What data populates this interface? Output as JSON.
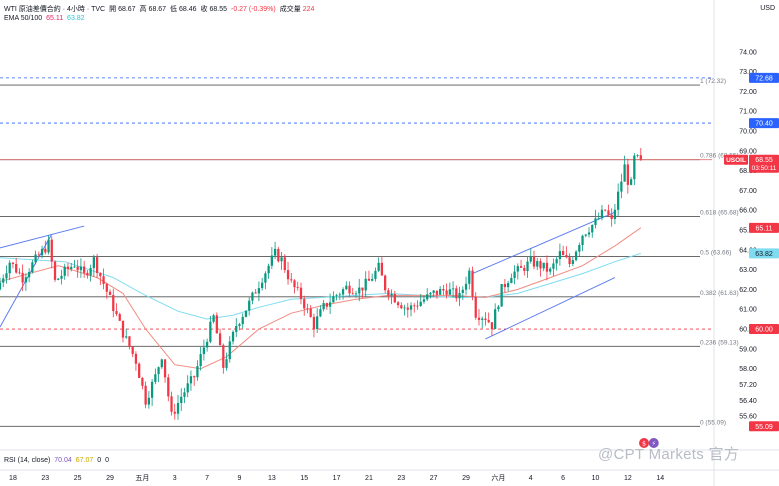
{
  "header": {
    "title": "WTI 原油差價合約 · 4小時 · TVC",
    "ohlc": [
      {
        "label": "開",
        "value": "68.67"
      },
      {
        "label": "高",
        "value": "68.67"
      },
      {
        "label": "低",
        "value": "68.46"
      },
      {
        "label": "收",
        "value": "68.55"
      }
    ],
    "change": "-0.27 (-0.39%)",
    "volume_label": "成交量",
    "volume_value": "224",
    "ema_label": "EMA 50/100",
    "ema50_value": "65.11",
    "ema100_value": "63.82",
    "currency": "USD"
  },
  "rsi": {
    "label": "RSI (14, close)",
    "value": "70.04",
    "ma": "67.07",
    "v1": "0",
    "v2": "0"
  },
  "watermark": "@CPT Markets 官方",
  "colors": {
    "up": "#089981",
    "down": "#f23645",
    "ema50": "#f28b82",
    "ema100": "#7fdcf0",
    "channel": "#5b7cf0",
    "fib": "#555555",
    "level": "#e57373",
    "blue_dash": "#2962ff"
  },
  "chart_data": {
    "type": "candlestick",
    "ylim": [
      54.6,
      75.2
    ],
    "xlim": [
      0,
      220
    ],
    "y_ticks": [
      74.0,
      73.0,
      72.0,
      71.0,
      70.0,
      69.0,
      68.0,
      67.0,
      66.0,
      65.0,
      64.0,
      63.0,
      62.0,
      61.0,
      60.0,
      59.0,
      58.0,
      57.2,
      56.4,
      55.6
    ],
    "x_labels": [
      {
        "label": "18",
        "x": 4
      },
      {
        "label": "23",
        "x": 14
      },
      {
        "label": "25",
        "x": 24
      },
      {
        "label": "29",
        "x": 34
      },
      {
        "label": "五月",
        "x": 44
      },
      {
        "label": "3",
        "x": 54
      },
      {
        "label": "7",
        "x": 64
      },
      {
        "label": "9",
        "x": 74
      },
      {
        "label": "13",
        "x": 84
      },
      {
        "label": "15",
        "x": 94
      },
      {
        "label": "17",
        "x": 104
      },
      {
        "label": "21",
        "x": 114
      },
      {
        "label": "23",
        "x": 124
      },
      {
        "label": "27",
        "x": 134
      },
      {
        "label": "29",
        "x": 144
      },
      {
        "label": "六月",
        "x": 154
      },
      {
        "label": "4",
        "x": 164
      },
      {
        "label": "6",
        "x": 174
      },
      {
        "label": "10",
        "x": 184
      },
      {
        "label": "12",
        "x": 194
      },
      {
        "label": "14",
        "x": 204
      }
    ],
    "anchors": [
      [
        0,
        62.0
      ],
      [
        4,
        63.4
      ],
      [
        8,
        62.6
      ],
      [
        12,
        63.5
      ],
      [
        16,
        64.3
      ],
      [
        18,
        62.4
      ],
      [
        21,
        62.9
      ],
      [
        24,
        63.3
      ],
      [
        27,
        62.7
      ],
      [
        30,
        63.5
      ],
      [
        33,
        62.3
      ],
      [
        36,
        61.1
      ],
      [
        39,
        59.8
      ],
      [
        43,
        58.4
      ],
      [
        46,
        56.4
      ],
      [
        49,
        57.6
      ],
      [
        51,
        58.7
      ],
      [
        54,
        55.6
      ],
      [
        57,
        56.6
      ],
      [
        61,
        57.6
      ],
      [
        64,
        59.1
      ],
      [
        67,
        60.6
      ],
      [
        70,
        58.1
      ],
      [
        74,
        60.2
      ],
      [
        78,
        61.3
      ],
      [
        82,
        62.6
      ],
      [
        86,
        63.8
      ],
      [
        88,
        63.5
      ],
      [
        91,
        62.3
      ],
      [
        94,
        61.6
      ],
      [
        98,
        60.2
      ],
      [
        101,
        61.1
      ],
      [
        104,
        61.6
      ],
      [
        108,
        62.1
      ],
      [
        112,
        62.0
      ],
      [
        115,
        62.4
      ],
      [
        118,
        63.1
      ],
      [
        120,
        62.1
      ],
      [
        124,
        61.4
      ],
      [
        127,
        61.0
      ],
      [
        131,
        61.4
      ],
      [
        135,
        61.8
      ],
      [
        139,
        62.0
      ],
      [
        143,
        61.6
      ],
      [
        146,
        62.9
      ],
      [
        148,
        60.8
      ],
      [
        151,
        60.6
      ],
      [
        153,
        60.2
      ],
      [
        156,
        62.0
      ],
      [
        159,
        62.8
      ],
      [
        162,
        63.0
      ],
      [
        165,
        63.4
      ],
      [
        168,
        63.2
      ],
      [
        171,
        62.9
      ],
      [
        174,
        63.8
      ],
      [
        177,
        63.3
      ],
      [
        181,
        64.8
      ],
      [
        185,
        65.4
      ],
      [
        188,
        66.0
      ],
      [
        190,
        65.4
      ],
      [
        192,
        66.8
      ],
      [
        194,
        68.2
      ],
      [
        195,
        67.5
      ],
      [
        196,
        67.3
      ],
      [
        197,
        68.6
      ],
      [
        198,
        68.55
      ]
    ],
    "ema50": [
      [
        0,
        62.4
      ],
      [
        18,
        63.2
      ],
      [
        30,
        62.6
      ],
      [
        38,
        61.8
      ],
      [
        45,
        60.0
      ],
      [
        54,
        58.2
      ],
      [
        62,
        58.0
      ],
      [
        70,
        58.6
      ],
      [
        80,
        60.0
      ],
      [
        90,
        60.8
      ],
      [
        100,
        61.2
      ],
      [
        110,
        61.5
      ],
      [
        120,
        61.7
      ],
      [
        130,
        61.7
      ],
      [
        140,
        61.7
      ],
      [
        150,
        61.6
      ],
      [
        160,
        62.0
      ],
      [
        170,
        62.6
      ],
      [
        180,
        63.2
      ],
      [
        190,
        64.2
      ],
      [
        198,
        65.11
      ]
    ],
    "ema100": [
      [
        0,
        63.6
      ],
      [
        20,
        63.4
      ],
      [
        35,
        62.6
      ],
      [
        45,
        61.7
      ],
      [
        55,
        60.9
      ],
      [
        64,
        60.5
      ],
      [
        72,
        60.7
      ],
      [
        80,
        61.1
      ],
      [
        90,
        61.5
      ],
      [
        100,
        61.6
      ],
      [
        110,
        61.7
      ],
      [
        120,
        61.8
      ],
      [
        130,
        61.7
      ],
      [
        140,
        61.6
      ],
      [
        150,
        61.6
      ],
      [
        160,
        61.8
      ],
      [
        170,
        62.3
      ],
      [
        180,
        62.8
      ],
      [
        190,
        63.4
      ],
      [
        198,
        63.82
      ]
    ],
    "fib_levels": [
      {
        "ratio": "1",
        "price": 72.32,
        "label": "1 (72.32)"
      },
      {
        "ratio": "0.786",
        "price": 68.55,
        "label": "0.786 (68.55)"
      },
      {
        "ratio": "0.618",
        "price": 65.68,
        "label": "0.618 (65.68)"
      },
      {
        "ratio": "0.5",
        "price": 63.66,
        "label": "0.5 (63.66)"
      },
      {
        "ratio": "0.382",
        "price": 61.63,
        "label": "0.382 (61.63)"
      },
      {
        "ratio": "0.236",
        "price": 59.13,
        "label": "0.236 (59.13)"
      },
      {
        "ratio": "0",
        "price": 55.09,
        "label": "0 (55.09)"
      }
    ],
    "blue_dashed_levels": [
      72.68,
      70.4
    ],
    "red_dashed_level": 60.0,
    "red_solid_level": 68.55,
    "channels": [
      {
        "from": [
          0,
          60.1
        ],
        "to": [
          16,
          64.8
        ],
        "color": "channel"
      },
      {
        "from": [
          0,
          64.1
        ],
        "to": [
          26,
          65.2
        ],
        "color": "channel"
      },
      {
        "from": [
          146,
          62.8
        ],
        "to": [
          190,
          65.9
        ],
        "color": "channel"
      },
      {
        "from": [
          150,
          59.5
        ],
        "to": [
          190,
          62.6
        ],
        "color": "channel"
      }
    ],
    "price_labels": [
      {
        "text": "72.68",
        "price": 72.68,
        "bg": "#2962ff",
        "fg": "#ffffff"
      },
      {
        "text": "70.40",
        "price": 70.4,
        "bg": "#2962ff",
        "fg": "#ffffff"
      },
      {
        "text": "USOIL",
        "price": 68.55,
        "bg": "#f23645",
        "fg": "#ffffff",
        "kind": "ticker"
      },
      {
        "text": "68.55",
        "price": 68.55,
        "bg": "#f23645",
        "fg": "#ffffff",
        "sub": "03:50:11"
      },
      {
        "text": "65.11",
        "price": 65.11,
        "bg": "#f23645",
        "fg": "#ffffff"
      },
      {
        "text": "63.82",
        "price": 63.82,
        "bg": "#7fdcf0",
        "fg": "#131722"
      },
      {
        "text": "60.00",
        "price": 60.0,
        "bg": "#f23645",
        "fg": "#ffffff"
      },
      {
        "text": "55.09",
        "price": 55.09,
        "bg": "#f23645",
        "fg": "#ffffff"
      }
    ],
    "event_icons": [
      {
        "x": 199,
        "label": "$"
      },
      {
        "x": 202,
        "label": "⚡"
      }
    ]
  }
}
